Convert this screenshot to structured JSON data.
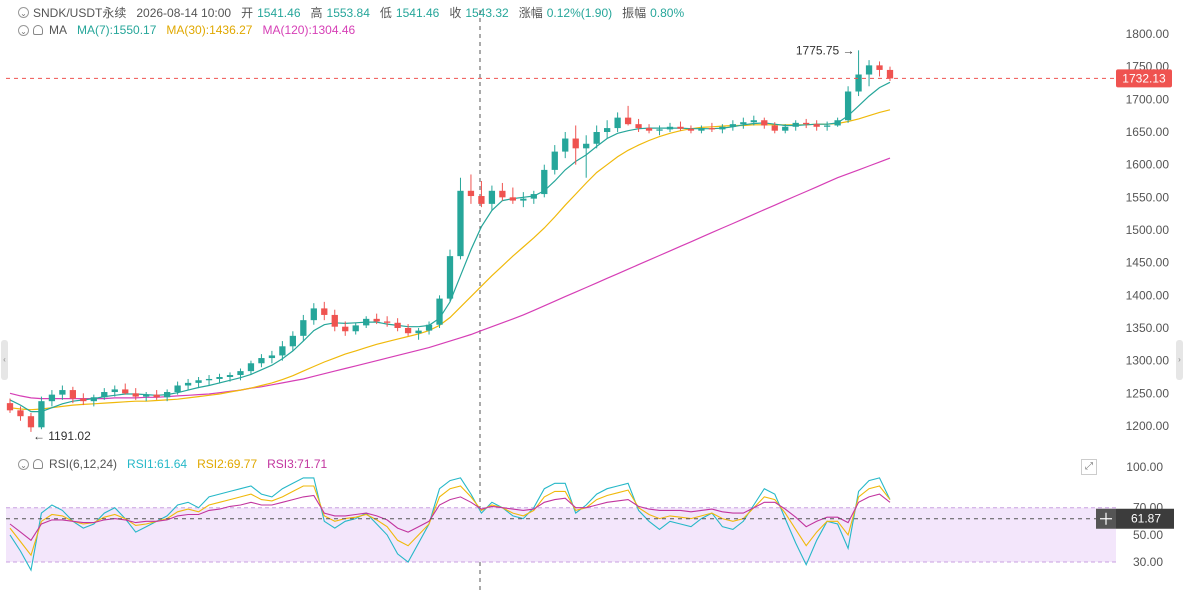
{
  "header": {
    "symbol": "SNDK/USDT永续",
    "datetime": "2026-08-14 10:00",
    "open_label": "开",
    "open": "1541.46",
    "high_label": "高",
    "high": "1553.84",
    "low_label": "低",
    "low": "1541.46",
    "close_label": "收",
    "close": "1543.32",
    "change_label": "涨幅",
    "change": "0.12%(1.90)",
    "amplitude_label": "振幅",
    "amplitude": "0.80%"
  },
  "ma_legend": {
    "title": "MA",
    "ma7": "MA(7):1550.17",
    "ma30": "MA(30):1436.27",
    "ma120": "MA(120):1304.46"
  },
  "rsi_legend": {
    "title": "RSI(6,12,24)",
    "rsi1": "RSI1:61.64",
    "rsi2": "RSI2:69.77",
    "rsi3": "RSI3:71.71"
  },
  "colors": {
    "up": "#26a69a",
    "down": "#ef5350",
    "ma7": "#26a69a",
    "ma30": "#f0b90b",
    "ma120": "#d63fb6",
    "rsi1": "#26b8c8",
    "rsi2": "#f0b90b",
    "rsi3": "#c2359f",
    "last_price": "#ef5350"
  },
  "chart_data": [
    {
      "type": "candlestick",
      "y_ticks": [
        "1800.00",
        "1750.00",
        "1700.00",
        "1650.00",
        "1600.00",
        "1550.00",
        "1500.00",
        "1450.00",
        "1400.00",
        "1350.00",
        "1300.00",
        "1250.00",
        "1200.00"
      ],
      "ylim": [
        1180,
        1815
      ],
      "last_price": "1732.13",
      "max_label": "1775.75",
      "min_label": "1191.02",
      "candles_ohlc": [
        [
          1235,
          1242,
          1220,
          1224
        ],
        [
          1224,
          1230,
          1208,
          1215
        ],
        [
          1215,
          1220,
          1191,
          1198
        ],
        [
          1198,
          1245,
          1195,
          1238
        ],
        [
          1238,
          1255,
          1230,
          1248
        ],
        [
          1248,
          1262,
          1240,
          1255
        ],
        [
          1255,
          1260,
          1235,
          1242
        ],
        [
          1242,
          1250,
          1232,
          1238
        ],
        [
          1238,
          1248,
          1230,
          1244
        ],
        [
          1244,
          1258,
          1240,
          1252
        ],
        [
          1252,
          1262,
          1245,
          1256
        ],
        [
          1256,
          1265,
          1248,
          1250
        ],
        [
          1250,
          1258,
          1240,
          1245
        ],
        [
          1245,
          1252,
          1238,
          1248
        ],
        [
          1248,
          1255,
          1240,
          1244
        ],
        [
          1244,
          1256,
          1238,
          1252
        ],
        [
          1252,
          1268,
          1248,
          1262
        ],
        [
          1262,
          1272,
          1255,
          1266
        ],
        [
          1266,
          1275,
          1258,
          1270
        ],
        [
          1270,
          1278,
          1262,
          1272
        ],
        [
          1272,
          1280,
          1265,
          1275
        ],
        [
          1275,
          1282,
          1268,
          1278
        ],
        [
          1278,
          1288,
          1270,
          1284
        ],
        [
          1284,
          1300,
          1278,
          1296
        ],
        [
          1296,
          1310,
          1290,
          1304
        ],
        [
          1304,
          1315,
          1296,
          1308
        ],
        [
          1308,
          1330,
          1300,
          1322
        ],
        [
          1322,
          1345,
          1315,
          1338
        ],
        [
          1338,
          1370,
          1330,
          1362
        ],
        [
          1362,
          1388,
          1355,
          1380
        ],
        [
          1380,
          1390,
          1362,
          1370
        ],
        [
          1370,
          1378,
          1345,
          1352
        ],
        [
          1352,
          1360,
          1338,
          1345
        ],
        [
          1345,
          1358,
          1340,
          1354
        ],
        [
          1354,
          1368,
          1350,
          1364
        ],
        [
          1364,
          1372,
          1356,
          1360
        ],
        [
          1360,
          1368,
          1352,
          1358
        ],
        [
          1358,
          1365,
          1345,
          1350
        ],
        [
          1350,
          1356,
          1338,
          1342
        ],
        [
          1342,
          1350,
          1332,
          1346
        ],
        [
          1346,
          1360,
          1340,
          1355
        ],
        [
          1355,
          1400,
          1350,
          1395
        ],
        [
          1395,
          1470,
          1390,
          1460
        ],
        [
          1460,
          1580,
          1455,
          1560
        ],
        [
          1560,
          1585,
          1540,
          1552
        ],
        [
          1552,
          1575,
          1535,
          1540
        ],
        [
          1540,
          1568,
          1530,
          1560
        ],
        [
          1560,
          1572,
          1545,
          1550
        ],
        [
          1550,
          1565,
          1540,
          1545
        ],
        [
          1545,
          1558,
          1535,
          1548
        ],
        [
          1548,
          1560,
          1540,
          1555
        ],
        [
          1555,
          1600,
          1550,
          1592
        ],
        [
          1592,
          1630,
          1585,
          1620
        ],
        [
          1620,
          1650,
          1610,
          1640
        ],
        [
          1640,
          1660,
          1600,
          1625
        ],
        [
          1625,
          1645,
          1580,
          1632
        ],
        [
          1632,
          1660,
          1625,
          1650
        ],
        [
          1650,
          1668,
          1640,
          1656
        ],
        [
          1656,
          1680,
          1650,
          1672
        ],
        [
          1672,
          1690,
          1660,
          1662
        ],
        [
          1662,
          1670,
          1650,
          1656
        ],
        [
          1656,
          1662,
          1648,
          1652
        ],
        [
          1652,
          1660,
          1645,
          1654
        ],
        [
          1654,
          1664,
          1650,
          1658
        ],
        [
          1658,
          1666,
          1652,
          1655
        ],
        [
          1655,
          1660,
          1648,
          1652
        ],
        [
          1652,
          1660,
          1648,
          1656
        ],
        [
          1656,
          1664,
          1650,
          1654
        ],
        [
          1654,
          1662,
          1648,
          1658
        ],
        [
          1658,
          1668,
          1652,
          1662
        ],
        [
          1662,
          1672,
          1655,
          1665
        ],
        [
          1665,
          1675,
          1660,
          1668
        ],
        [
          1668,
          1672,
          1655,
          1660
        ],
        [
          1660,
          1665,
          1648,
          1652
        ],
        [
          1652,
          1662,
          1648,
          1658
        ],
        [
          1658,
          1668,
          1652,
          1664
        ],
        [
          1664,
          1670,
          1656,
          1662
        ],
        [
          1662,
          1668,
          1652,
          1658
        ],
        [
          1658,
          1666,
          1652,
          1660
        ],
        [
          1660,
          1672,
          1658,
          1668
        ],
        [
          1668,
          1720,
          1664,
          1712
        ],
        [
          1712,
          1775,
          1705,
          1738
        ],
        [
          1738,
          1760,
          1720,
          1752
        ],
        [
          1752,
          1758,
          1735,
          1745
        ],
        [
          1745,
          1750,
          1728,
          1732
        ]
      ],
      "ma7": [
        1240,
        1232,
        1222,
        1222,
        1228,
        1234,
        1238,
        1240,
        1242,
        1245,
        1247,
        1249,
        1249,
        1248,
        1247,
        1248,
        1251,
        1255,
        1259,
        1262,
        1266,
        1270,
        1274,
        1279,
        1286,
        1293,
        1303,
        1315,
        1330,
        1346,
        1355,
        1358,
        1357,
        1358,
        1359,
        1359,
        1356,
        1354,
        1352,
        1352,
        1354,
        1365,
        1390,
        1430,
        1470,
        1505,
        1530,
        1545,
        1548,
        1550,
        1552,
        1560,
        1575,
        1592,
        1605,
        1615,
        1628,
        1640,
        1648,
        1652,
        1655,
        1656,
        1656,
        1656,
        1656,
        1655,
        1655,
        1655,
        1656,
        1658,
        1661,
        1663,
        1664,
        1662,
        1660,
        1660,
        1661,
        1662,
        1662,
        1664,
        1675,
        1690,
        1705,
        1718,
        1726
      ],
      "ma30": [
        1228,
        1226,
        1225,
        1226,
        1228,
        1230,
        1232,
        1233,
        1234,
        1235,
        1236,
        1237,
        1238,
        1238,
        1239,
        1240,
        1241,
        1243,
        1245,
        1247,
        1249,
        1252,
        1255,
        1258,
        1262,
        1266,
        1271,
        1277,
        1284,
        1291,
        1298,
        1304,
        1310,
        1315,
        1320,
        1325,
        1329,
        1333,
        1337,
        1341,
        1346,
        1354,
        1366,
        1382,
        1398,
        1414,
        1430,
        1445,
        1460,
        1474,
        1488,
        1503,
        1520,
        1538,
        1555,
        1572,
        1588,
        1600,
        1612,
        1622,
        1630,
        1637,
        1643,
        1648,
        1652,
        1655,
        1657,
        1658,
        1659,
        1660,
        1660,
        1661,
        1661,
        1661,
        1661,
        1661,
        1661,
        1662,
        1662,
        1663,
        1666,
        1670,
        1675,
        1680,
        1684
      ],
      "ma120": [
        1250,
        1246,
        1243,
        1242,
        1242,
        1242,
        1242,
        1242,
        1242,
        1242,
        1243,
        1243,
        1243,
        1244,
        1244,
        1245,
        1246,
        1247,
        1248,
        1249,
        1251,
        1253,
        1255,
        1258,
        1260,
        1263,
        1266,
        1269,
        1272,
        1276,
        1280,
        1284,
        1288,
        1292,
        1296,
        1300,
        1304,
        1308,
        1312,
        1316,
        1320,
        1325,
        1330,
        1335,
        1340,
        1346,
        1352,
        1358,
        1364,
        1370,
        1377,
        1384,
        1391,
        1398,
        1405,
        1412,
        1419,
        1426,
        1433,
        1440,
        1447,
        1454,
        1461,
        1468,
        1475,
        1482,
        1489,
        1496,
        1503,
        1510,
        1517,
        1524,
        1531,
        1538,
        1545,
        1552,
        1559,
        1566,
        1573,
        1580,
        1586,
        1592,
        1598,
        1604,
        1610
      ]
    },
    {
      "type": "line",
      "indicator": "RSI(6,12,24)",
      "y_ticks": [
        "100.00",
        "70.00",
        "50.00",
        "30.00"
      ],
      "ylim": [
        20,
        105
      ],
      "band": [
        30,
        70
      ],
      "last_value_label": "61.87",
      "series": [
        {
          "name": "RSI1",
          "values": [
            50,
            38,
            24,
            66,
            72,
            68,
            60,
            55,
            58,
            66,
            70,
            62,
            52,
            56,
            60,
            64,
            72,
            74,
            70,
            78,
            80,
            82,
            84,
            86,
            80,
            78,
            84,
            88,
            92,
            92,
            60,
            55,
            60,
            62,
            66,
            58,
            50,
            36,
            30,
            44,
            58,
            84,
            90,
            92,
            80,
            66,
            74,
            70,
            64,
            62,
            70,
            84,
            88,
            88,
            66,
            72,
            80,
            84,
            86,
            88,
            68,
            60,
            54,
            60,
            58,
            56,
            62,
            66,
            56,
            54,
            60,
            72,
            84,
            80,
            62,
            44,
            28,
            46,
            60,
            58,
            40,
            82,
            90,
            92,
            76
          ]
        },
        {
          "name": "RSI2",
          "values": [
            55,
            45,
            35,
            60,
            65,
            64,
            60,
            58,
            59,
            63,
            65,
            62,
            57,
            58,
            60,
            62,
            67,
            69,
            67,
            72,
            74,
            76,
            78,
            80,
            76,
            75,
            78,
            82,
            86,
            86,
            64,
            60,
            62,
            63,
            65,
            61,
            56,
            46,
            42,
            50,
            58,
            78,
            84,
            86,
            78,
            68,
            72,
            70,
            66,
            64,
            68,
            78,
            82,
            82,
            68,
            70,
            76,
            79,
            81,
            83,
            70,
            65,
            62,
            64,
            63,
            62,
            64,
            66,
            62,
            60,
            62,
            70,
            78,
            76,
            66,
            54,
            42,
            52,
            60,
            60,
            50,
            78,
            84,
            86,
            76
          ]
        },
        {
          "name": "RSI3",
          "values": [
            58,
            52,
            46,
            58,
            61,
            61,
            60,
            59,
            59,
            61,
            62,
            61,
            59,
            60,
            60,
            61,
            64,
            65,
            65,
            68,
            69,
            71,
            72,
            74,
            72,
            72,
            74,
            76,
            78,
            79,
            66,
            64,
            64,
            65,
            66,
            64,
            61,
            55,
            52,
            56,
            60,
            72,
            76,
            78,
            74,
            69,
            71,
            70,
            69,
            68,
            69,
            74,
            76,
            77,
            70,
            70,
            72,
            74,
            75,
            76,
            71,
            69,
            68,
            68,
            68,
            67,
            68,
            69,
            67,
            66,
            66,
            70,
            74,
            74,
            69,
            63,
            56,
            60,
            63,
            63,
            59,
            74,
            78,
            80,
            74
          ]
        }
      ]
    }
  ]
}
